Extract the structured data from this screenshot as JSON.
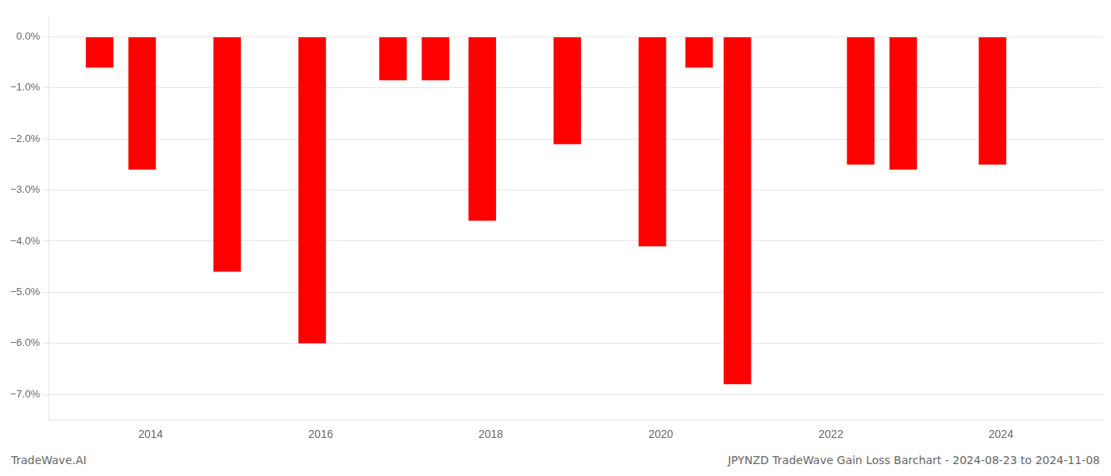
{
  "chart_data": {
    "type": "bar",
    "title": "JPYNZD TradeWave Gain Loss Barchart - 2024-08-23 to 2024-11-08",
    "annotations": [
      "TradeWave.AI"
    ],
    "x": [
      2013.4,
      2013.9,
      2014.9,
      2015.9,
      2016.85,
      2017.35,
      2017.9,
      2018.9,
      2019.9,
      2020.45,
      2020.9,
      2022.35,
      2022.85,
      2023.9
    ],
    "values": [
      -0.006,
      -0.026,
      -0.046,
      -0.06,
      -0.0085,
      -0.0085,
      -0.036,
      -0.021,
      -0.041,
      -0.006,
      -0.068,
      -0.025,
      -0.026,
      -0.025
    ],
    "color": "#ff0000",
    "xlim": [
      2012.8,
      2025.2
    ],
    "xticks": [
      2014,
      2016,
      2018,
      2020,
      2022,
      2024
    ],
    "ylim": [
      -0.075,
      0.004
    ],
    "yticks": [
      {
        "value": 0.0,
        "label": "0.0%"
      },
      {
        "value": -0.01,
        "label": "−1.0%"
      },
      {
        "value": -0.02,
        "label": "−2.0%"
      },
      {
        "value": -0.03,
        "label": "−3.0%"
      },
      {
        "value": -0.04,
        "label": "−4.0%"
      },
      {
        "value": -0.05,
        "label": "−5.0%"
      },
      {
        "value": -0.06,
        "label": "−6.0%"
      },
      {
        "value": -0.07,
        "label": "−7.0%"
      }
    ],
    "grid": true
  }
}
